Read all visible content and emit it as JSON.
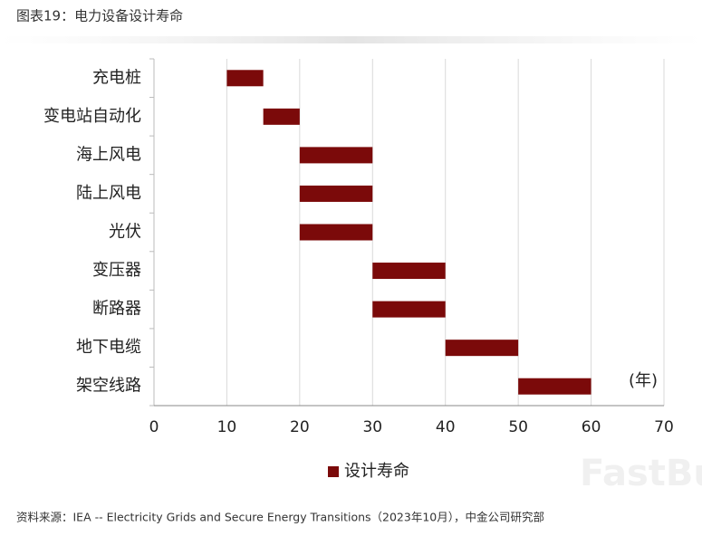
{
  "title": "图表19：电力设备设计寿命",
  "source": "资料来源：IEA -- Electricity   Grids and Secure Energy Transitions（2023年10月），中金公司研究部",
  "watermark": "FastBull",
  "chart_data": {
    "type": "floating-bar",
    "orientation": "horizontal",
    "categories": [
      "充电桩",
      "变电站自动化",
      "海上风电",
      "陆上风电",
      "光伏",
      "变压器",
      "断路器",
      "地下电缆",
      "架空线路"
    ],
    "series": [
      {
        "name": "设计寿命",
        "color": "#7b0a0a",
        "values": [
          [
            10,
            15
          ],
          [
            15,
            20
          ],
          [
            20,
            30
          ],
          [
            20,
            30
          ],
          [
            20,
            30
          ],
          [
            30,
            40
          ],
          [
            30,
            40
          ],
          [
            40,
            50
          ],
          [
            50,
            60
          ]
        ]
      }
    ],
    "xlim": [
      0,
      70
    ],
    "xticks": [
      0,
      10,
      20,
      30,
      40,
      50,
      60,
      70
    ],
    "x_unit_label": "(年)",
    "grid": true,
    "legend": "bottom"
  }
}
